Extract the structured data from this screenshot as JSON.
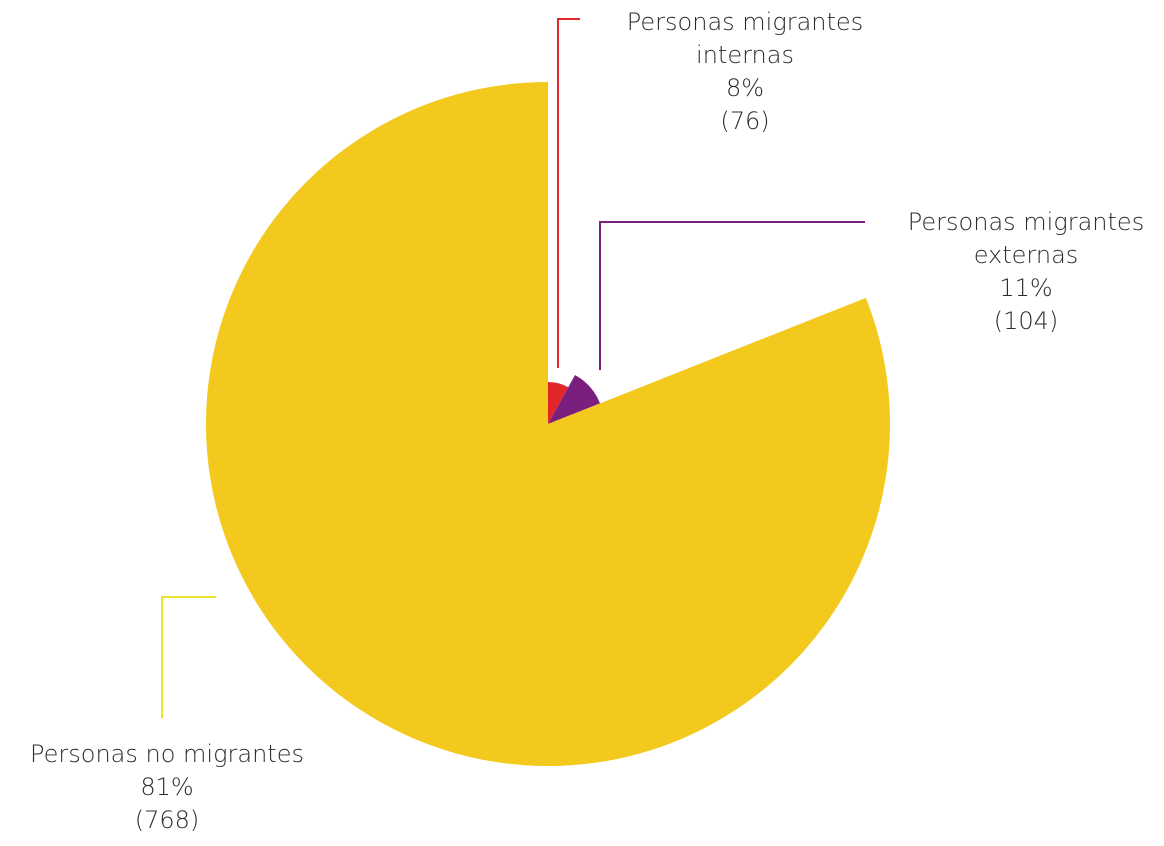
{
  "chart_data": {
    "type": "pie",
    "title": "",
    "slices": [
      {
        "label_lines": [
          "Personas migrantes",
          "internas"
        ],
        "percent_label": "8%",
        "count_label": "(76)",
        "value": 76,
        "percent": 8,
        "color": "#E3262A"
      },
      {
        "label_lines": [
          "Personas migrantes",
          "externas"
        ],
        "percent_label": "11%",
        "count_label": "(104)",
        "value": 104,
        "percent": 11,
        "color": "#7B1F7E"
      },
      {
        "label_lines": [
          "Personas no migrantes"
        ],
        "percent_label": "81%",
        "count_label": "(768)",
        "value": 768,
        "percent": 81,
        "color": "#F2C91C"
      }
    ],
    "leader_colors": {
      "internas": "#E3262A",
      "externas": "#7B1F7E",
      "no_migrantes": "#EEE22A"
    }
  }
}
